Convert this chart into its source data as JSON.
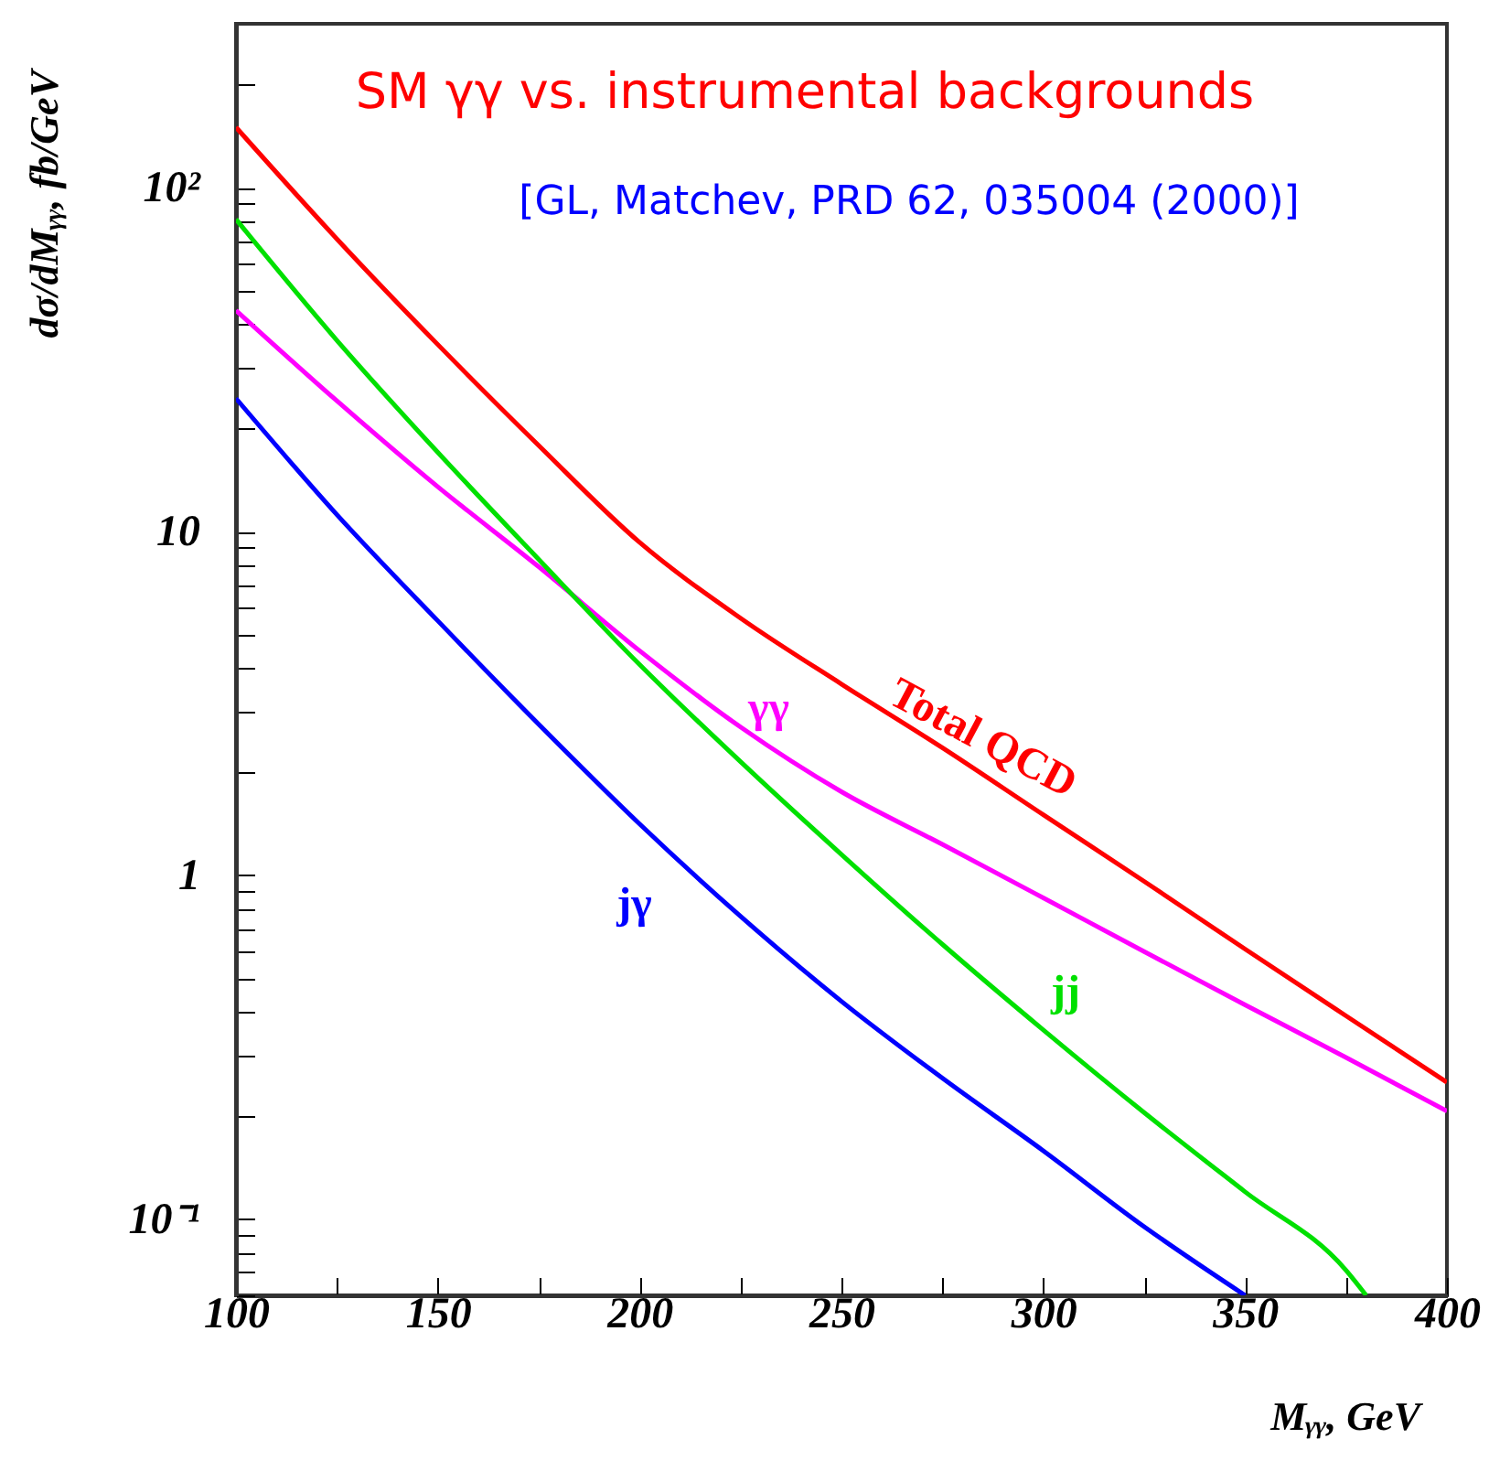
{
  "chart_data": {
    "type": "line",
    "title": "SM γγ vs. instrumental backgrounds",
    "subtitle": "[GL, Matchev, PRD 62, 035004 (2000)]",
    "xlabel": "Mᵧᵧ, GeV",
    "ylabel": "dσ/dMᵧᵧ, fb/GeV",
    "log": "y",
    "xlim": [
      100,
      400
    ],
    "ylim": [
      0.06,
      300
    ],
    "xticks": [
      100,
      {
        "value": 125,
        "label": null
      },
      150,
      {
        "value": 175,
        "label": null
      },
      200,
      {
        "value": 225,
        "label": null
      },
      250,
      {
        "value": 275,
        "label": null
      },
      300,
      {
        "value": 325,
        "label": null
      },
      350,
      {
        "value": 375,
        "label": null
      },
      400
    ],
    "yticks": [
      {
        "value": 0.06,
        "label": null
      },
      {
        "value": 0.07,
        "label": null
      },
      {
        "value": 0.08,
        "label": null
      },
      {
        "value": 0.09,
        "label": null
      },
      {
        "value": 0.1,
        "label": "10⁻¹"
      },
      {
        "value": 0.2,
        "label": null
      },
      {
        "value": 0.3,
        "label": null
      },
      {
        "value": 0.4,
        "label": null
      },
      {
        "value": 0.5,
        "label": null
      },
      {
        "value": 0.6,
        "label": null
      },
      {
        "value": 0.7,
        "label": null
      },
      {
        "value": 0.8,
        "label": null
      },
      {
        "value": 0.9,
        "label": null
      },
      1,
      {
        "value": 2,
        "label": null
      },
      {
        "value": 3,
        "label": null
      },
      {
        "value": 4,
        "label": null
      },
      {
        "value": 5,
        "label": null
      },
      {
        "value": 6,
        "label": null
      },
      {
        "value": 7,
        "label": null
      },
      {
        "value": 8,
        "label": null
      },
      {
        "value": 9,
        "label": null
      },
      10,
      {
        "value": 20,
        "label": null
      },
      {
        "value": 30,
        "label": null
      },
      {
        "value": 40,
        "label": null
      },
      {
        "value": 50,
        "label": null
      },
      {
        "value": 60,
        "label": null
      },
      {
        "value": 70,
        "label": null
      },
      {
        "value": 80,
        "label": null
      },
      {
        "value": 90,
        "label": null
      },
      {
        "value": 100,
        "label": "10²"
      },
      {
        "value": 200,
        "label": null
      }
    ],
    "grid": false,
    "series": [
      {
        "name": "Total QCD",
        "color": "#ff0000",
        "x": [
          100,
          125,
          150,
          175,
          200,
          225,
          250,
          275,
          300,
          325,
          350,
          375,
          400
        ],
        "values": [
          150,
          71,
          35,
          17.8,
          9.3,
          5.6,
          3.6,
          2.35,
          1.5,
          0.96,
          0.61,
          0.39,
          0.25
        ]
      },
      {
        "name": "γγ",
        "color": "#ff00ff",
        "x": [
          100,
          125,
          150,
          175,
          200,
          225,
          250,
          275,
          300,
          325,
          350,
          375,
          400
        ],
        "values": [
          44,
          24,
          13.5,
          7.9,
          4.5,
          2.7,
          1.75,
          1.23,
          0.86,
          0.6,
          0.42,
          0.295,
          0.206
        ]
      },
      {
        "name": "jj",
        "color": "#00e000",
        "x": [
          100,
          125,
          150,
          175,
          200,
          225,
          250,
          275,
          300,
          325,
          350,
          375,
          380
        ],
        "values": [
          81,
          36,
          17,
          8.3,
          4.1,
          2.14,
          1.15,
          0.63,
          0.355,
          0.204,
          0.12,
          0.071,
          0.06
        ]
      },
      {
        "name": "jγ",
        "color": "#0000ff",
        "x": [
          100,
          125,
          150,
          175,
          200,
          225,
          250,
          275,
          300,
          325,
          350
        ],
        "values": [
          24.4,
          11.2,
          5.5,
          2.75,
          1.41,
          0.76,
          0.43,
          0.257,
          0.158,
          0.095,
          0.06
        ]
      }
    ]
  }
}
